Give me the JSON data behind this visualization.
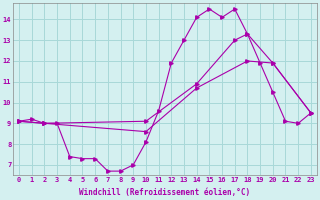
{
  "xlabel": "Windchill (Refroidissement éolien,°C)",
  "bg_color": "#d4f0f0",
  "grid_color": "#a8d8d8",
  "line_color": "#aa00aa",
  "xlim": [
    -0.5,
    23.5
  ],
  "ylim": [
    6.5,
    14.8
  ],
  "yticks": [
    7,
    8,
    9,
    10,
    11,
    12,
    13,
    14
  ],
  "xticks": [
    0,
    1,
    2,
    3,
    4,
    5,
    6,
    7,
    8,
    9,
    10,
    11,
    12,
    13,
    14,
    15,
    16,
    17,
    18,
    19,
    20,
    21,
    22,
    23
  ],
  "line1_x": [
    0,
    1,
    2,
    3,
    4,
    5,
    6,
    7,
    8,
    9,
    10,
    11,
    12,
    13,
    14,
    15,
    16,
    17,
    18,
    19,
    20,
    21,
    22,
    23
  ],
  "line1_y": [
    9.1,
    9.2,
    9.0,
    9.0,
    7.4,
    7.3,
    7.3,
    6.7,
    6.7,
    7.0,
    8.1,
    9.6,
    11.9,
    13.0,
    14.1,
    14.5,
    14.1,
    14.5,
    13.3,
    11.9,
    10.5,
    9.1,
    9.0,
    9.5
  ],
  "line2_x": [
    0,
    2,
    10,
    14,
    17,
    18,
    20,
    23
  ],
  "line2_y": [
    9.1,
    9.0,
    9.1,
    10.9,
    13.0,
    13.3,
    11.9,
    9.5
  ],
  "line3_x": [
    0,
    2,
    10,
    14,
    18,
    20,
    23
  ],
  "line3_y": [
    9.1,
    9.0,
    8.6,
    10.7,
    12.0,
    11.9,
    9.5
  ]
}
